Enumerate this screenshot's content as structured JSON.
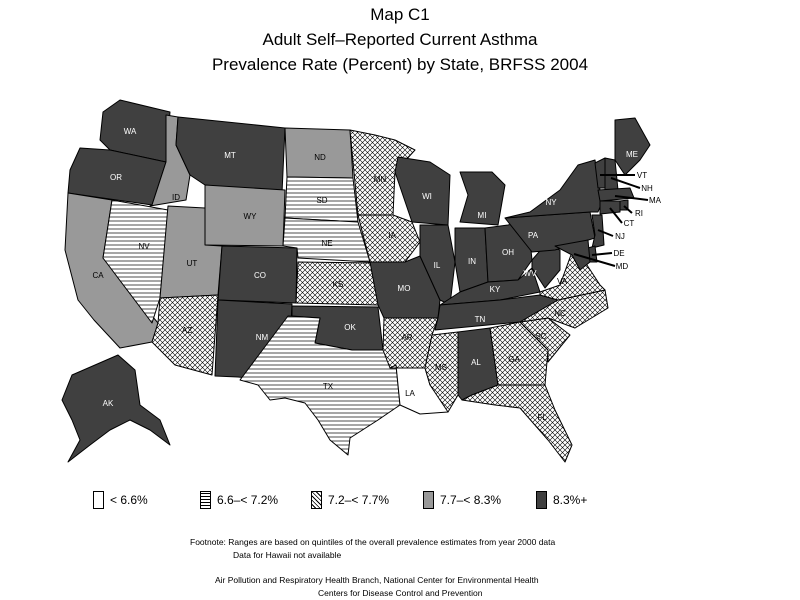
{
  "titles": {
    "line1": "Map C1",
    "line2": "Adult Self–Reported Current Asthma",
    "line3": "Prevalence Rate (Percent) by State, BRFSS 2004"
  },
  "categories": [
    {
      "label": "< 6.6%",
      "fill": "white"
    },
    {
      "label": "6.6–< 7.2%",
      "fill": "horizontal-lines"
    },
    {
      "label": "7.2–< 7.7%",
      "fill": "crosshatch"
    },
    {
      "label": "7.7–< 8.3%",
      "fill": "light-gray"
    },
    {
      "label": "8.3%+",
      "fill": "dark-gray"
    }
  ],
  "colors": {
    "light_gray": "#999999",
    "dark_gray": "#404040",
    "outline": "#000000"
  },
  "states": [
    {
      "abbr": "WA",
      "category": 4
    },
    {
      "abbr": "OR",
      "category": 4
    },
    {
      "abbr": "CA",
      "category": 3
    },
    {
      "abbr": "NV",
      "category": 1
    },
    {
      "abbr": "ID",
      "category": 3
    },
    {
      "abbr": "MT",
      "category": 4
    },
    {
      "abbr": "WY",
      "category": 3
    },
    {
      "abbr": "UT",
      "category": 3
    },
    {
      "abbr": "AZ",
      "category": 2
    },
    {
      "abbr": "CO",
      "category": 4
    },
    {
      "abbr": "NM",
      "category": 4
    },
    {
      "abbr": "ND",
      "category": 3
    },
    {
      "abbr": "SD",
      "category": 1
    },
    {
      "abbr": "NE",
      "category": 1
    },
    {
      "abbr": "KS",
      "category": 2
    },
    {
      "abbr": "OK",
      "category": 4
    },
    {
      "abbr": "TX",
      "category": 1
    },
    {
      "abbr": "MN",
      "category": 2
    },
    {
      "abbr": "IA",
      "category": 2
    },
    {
      "abbr": "MO",
      "category": 4
    },
    {
      "abbr": "AR",
      "category": 2
    },
    {
      "abbr": "LA",
      "category": 0
    },
    {
      "abbr": "WI",
      "category": 4
    },
    {
      "abbr": "IL",
      "category": 4
    },
    {
      "abbr": "MI",
      "category": 4
    },
    {
      "abbr": "IN",
      "category": 4
    },
    {
      "abbr": "OH",
      "category": 4
    },
    {
      "abbr": "KY",
      "category": 4
    },
    {
      "abbr": "TN",
      "category": 4
    },
    {
      "abbr": "MS",
      "category": 2
    },
    {
      "abbr": "AL",
      "category": 4
    },
    {
      "abbr": "GA",
      "category": 2
    },
    {
      "abbr": "FL",
      "category": 2
    },
    {
      "abbr": "SC",
      "category": 2
    },
    {
      "abbr": "NC",
      "category": 2
    },
    {
      "abbr": "VA",
      "category": 2
    },
    {
      "abbr": "WV",
      "category": 4
    },
    {
      "abbr": "PA",
      "category": 4
    },
    {
      "abbr": "NY",
      "category": 4
    },
    {
      "abbr": "ME",
      "category": 4
    },
    {
      "abbr": "VT",
      "category": 4
    },
    {
      "abbr": "NH",
      "category": 4
    },
    {
      "abbr": "MA",
      "category": 4
    },
    {
      "abbr": "RI",
      "category": 4
    },
    {
      "abbr": "CT",
      "category": 4
    },
    {
      "abbr": "NJ",
      "category": 4
    },
    {
      "abbr": "DE",
      "category": 4
    },
    {
      "abbr": "MD",
      "category": 4
    },
    {
      "abbr": "AK",
      "category": 4
    }
  ],
  "footnote": {
    "line1": "Footnote: Ranges are based on quintiles of the overall prevalence estimates from year 2000 data",
    "line2": "Data for Hawaii not available"
  },
  "source": {
    "line1": "Air Pollution and Respiratory Health Branch, National Center for Environmental Health",
    "line2": "Centers for Disease Control and Prevention"
  }
}
